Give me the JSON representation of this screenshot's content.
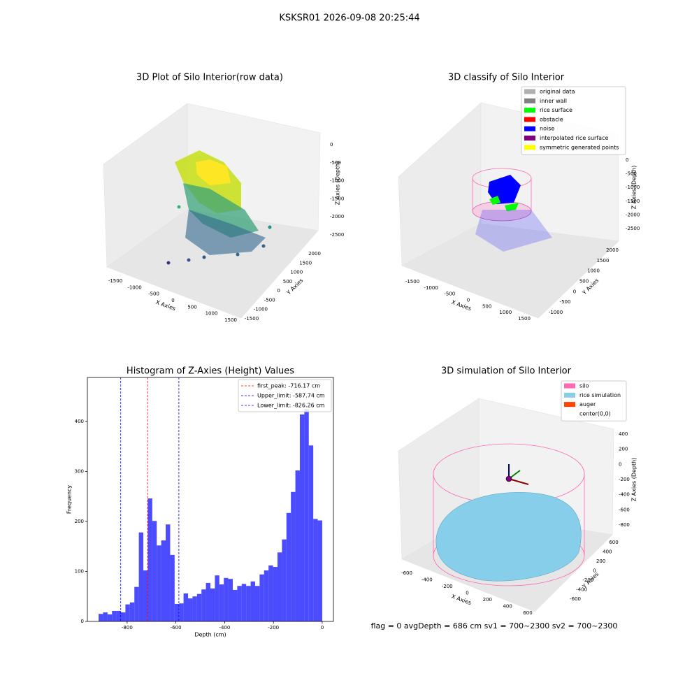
{
  "suptitle": "KSKSR01 2026-09-08 20:25:44",
  "status_text": "flag = 0     avgDepth = 686 cm  sv1 = 700~2300  sv2 = 700~2300",
  "chart_data": [
    {
      "type": "scatter3d",
      "title": "3D Plot of Silo Interior(row data)",
      "xlabel": "X Axies",
      "ylabel": "Y Axies",
      "zlabel": "Z Axies (Depth)",
      "xticks": [
        -1500,
        -1000,
        -500,
        0,
        500,
        1000,
        1500
      ],
      "yticks": [
        -1500,
        -1000,
        -500,
        0,
        500,
        1000,
        1500,
        2000
      ],
      "zticks": [
        -2500,
        -2000,
        -1500,
        -1000,
        -500,
        0
      ]
    },
    {
      "type": "scatter3d",
      "title": "3D classify of Silo Interior",
      "xlabel": "X Axies",
      "ylabel": "Y Axies",
      "zlabel": "Z Axies (Depth)",
      "xticks": [
        -1500,
        -1000,
        -500,
        0,
        500,
        1000,
        1500
      ],
      "yticks": [
        -1000,
        -500,
        0,
        500,
        1000,
        1500,
        2000
      ],
      "zticks": [
        -2500,
        -2000,
        -1500,
        -1000,
        -500,
        0
      ],
      "legend": [
        {
          "name": "original data",
          "color": "#b0b0b0"
        },
        {
          "name": "inner wall",
          "color": "#808080"
        },
        {
          "name": "rice surface",
          "color": "#00ff00"
        },
        {
          "name": "obstacle",
          "color": "#ff0000"
        },
        {
          "name": "noise",
          "color": "#0000ff"
        },
        {
          "name": "interpolated rice surface",
          "color": "#800080"
        },
        {
          "name": "symmetric generated points",
          "color": "#ffff00"
        }
      ]
    },
    {
      "type": "histogram",
      "title": "Histogram of Z-Axies (Height) Values",
      "xlabel": "Depth (cm)",
      "ylabel": "Frequency",
      "color": "#0000ff",
      "alpha": 0.7,
      "bins": [
        -917.0,
        -898.66,
        -880.32,
        -861.98,
        -843.64,
        -825.3,
        -806.96,
        -788.62,
        -770.28,
        -751.94,
        -733.6,
        -715.26,
        -696.92,
        -678.58,
        -660.24,
        -641.9,
        -623.56,
        -605.22,
        -586.88,
        -568.54,
        -550.2,
        -531.86,
        -513.52,
        -495.18,
        -476.84,
        -458.5,
        -440.16,
        -421.82,
        -403.48,
        -385.14,
        -366.8,
        -348.46,
        -330.12,
        -311.78,
        -293.44,
        -275.1,
        -256.76,
        -238.42,
        -220.08,
        -201.74,
        -183.4,
        -165.06,
        -146.72,
        -128.38,
        -110.04,
        -91.7,
        -73.36,
        -55.02,
        -36.68,
        -18.34,
        0
      ],
      "counts": [
        15,
        18,
        14,
        21,
        21,
        18,
        34,
        38,
        69,
        178,
        102,
        246,
        201,
        152,
        162,
        194,
        133,
        35,
        36,
        56,
        46,
        50,
        55,
        64,
        77,
        66,
        92,
        74,
        87,
        85,
        63,
        71,
        75,
        71,
        80,
        71,
        94,
        102,
        112,
        109,
        138,
        164,
        217,
        259,
        302,
        414,
        425,
        352,
        205,
        202
      ],
      "xlim": [
        -963,
        46
      ],
      "xticks": [
        -800,
        -600,
        -400,
        -200,
        0
      ],
      "ylim": [
        0,
        488
      ],
      "yticks": [
        0,
        100,
        200,
        300,
        400
      ],
      "vlines": [
        {
          "label": "first_peak: -716.17 cm",
          "value": -716.17,
          "color": "#ff0000"
        },
        {
          "label": "Upper_limit: -587.74 cm",
          "value": -587.74,
          "color": "#0000ff"
        },
        {
          "label": "Lower_limit: -826.26 cm",
          "value": -826.26,
          "color": "#0000ff"
        }
      ]
    },
    {
      "type": "surface3d",
      "title": "3D simulation of Silo Interior",
      "xlabel": "X Axies",
      "ylabel": "Y Axies",
      "zlabel": "Z Axies (Depth)",
      "xticks": [
        -600,
        -400,
        -200,
        0,
        200,
        400,
        600
      ],
      "yticks": [
        -600,
        -400,
        -200,
        0,
        200,
        400,
        600
      ],
      "zticks": [
        -800,
        -600,
        -400,
        -200,
        0,
        200,
        400
      ],
      "legend": [
        {
          "name": "silo",
          "color": "#ff69b4"
        },
        {
          "name": "rice simulation",
          "color": "#87ceeb"
        },
        {
          "name": "auger",
          "color": "#ff4500"
        },
        {
          "name": "center(0,0)",
          "color": "#ffffff"
        }
      ]
    }
  ]
}
